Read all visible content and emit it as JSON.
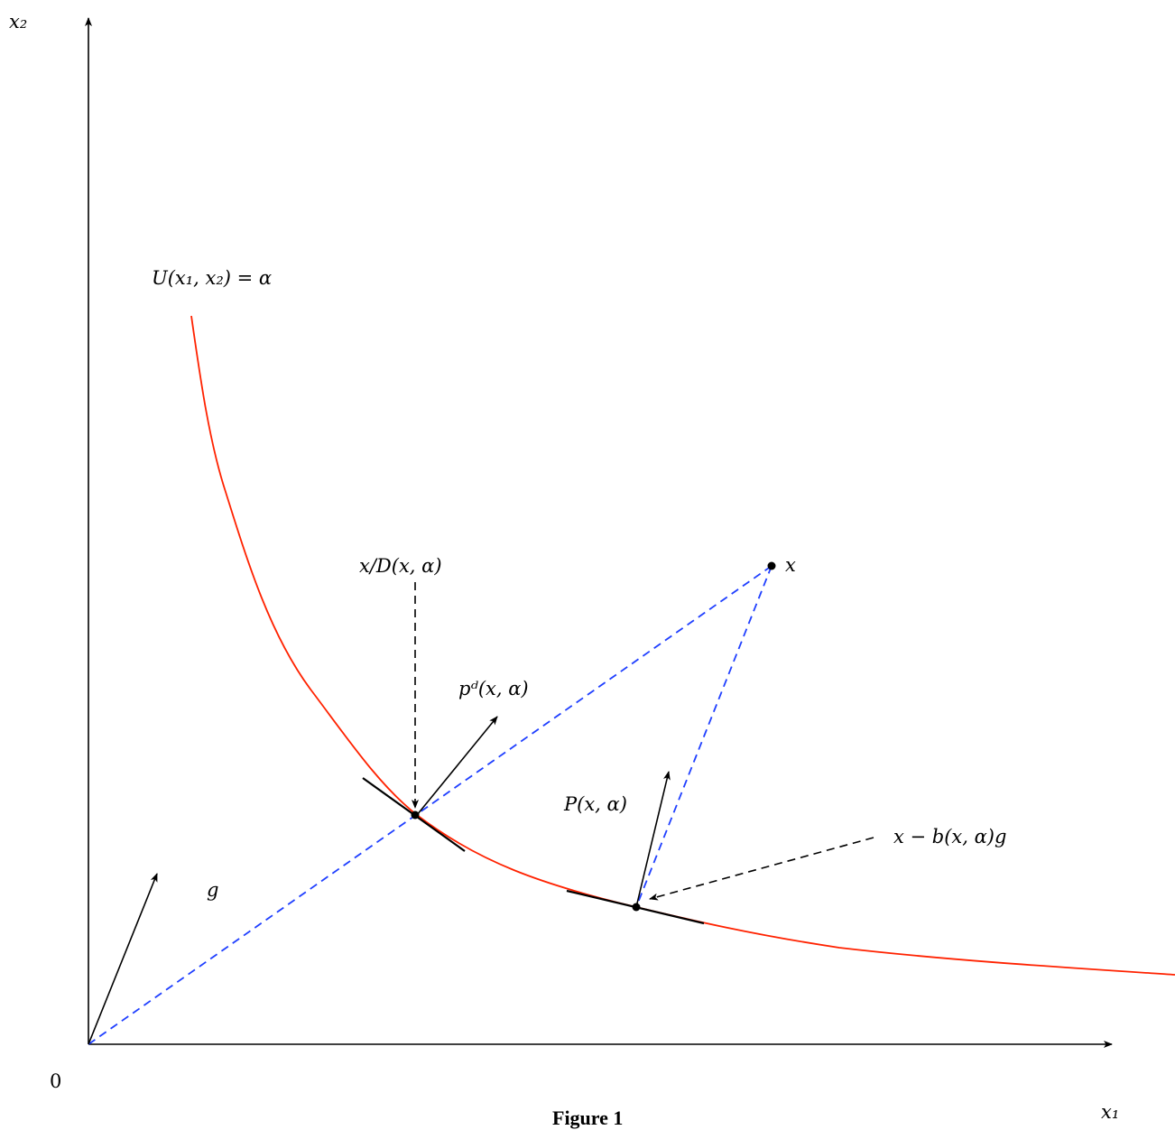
{
  "axes": {
    "x_label": "x₁",
    "y_label": "x₂",
    "origin_label": "0"
  },
  "curve": {
    "label": "U(x₁, x₂) = α",
    "color": "#ff2200"
  },
  "labels": {
    "g": "g",
    "distance_point": "x/D(x, α)",
    "price_dual": "pᵈ(x, α)",
    "point_x": "x",
    "price_projection": "P(x, α)",
    "benefit_point": "x − b(x, α)g"
  },
  "colors": {
    "axis": "#000000",
    "dashed_blue": "#1f3fff",
    "tangent": "#000000"
  },
  "caption": "Figure 1"
}
